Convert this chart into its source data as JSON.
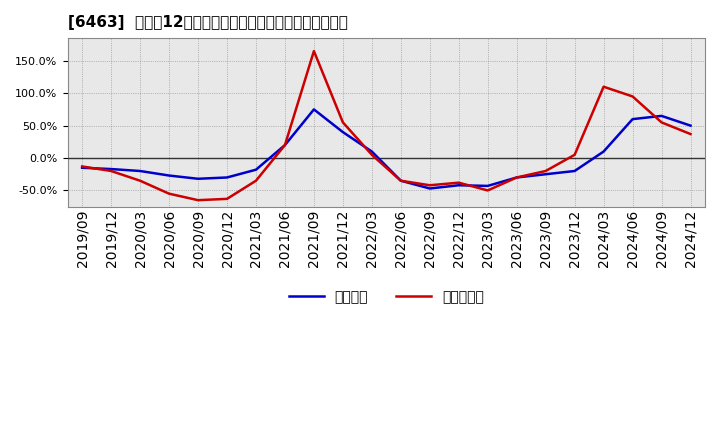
{
  "title": "[6463]  利益の12か月移動合計の対前年同期増減率の推移",
  "x_labels": [
    "2019/09",
    "2019/12",
    "2020/03",
    "2020/06",
    "2020/09",
    "2020/12",
    "2021/03",
    "2021/06",
    "2021/09",
    "2021/12",
    "2022/03",
    "2022/06",
    "2022/09",
    "2022/12",
    "2023/03",
    "2023/06",
    "2023/09",
    "2023/12",
    "2024/03",
    "2024/06",
    "2024/09",
    "2024/12"
  ],
  "operating_profit": [
    -15,
    -17,
    -20,
    -27,
    -32,
    -30,
    -18,
    20,
    75,
    40,
    10,
    -35,
    -47,
    -42,
    -43,
    -30,
    -25,
    -20,
    10,
    60,
    65,
    50
  ],
  "net_profit": [
    -13,
    -20,
    -35,
    -55,
    -65,
    -63,
    -35,
    20,
    165,
    55,
    5,
    -35,
    -42,
    -38,
    -50,
    -30,
    -20,
    5,
    110,
    95,
    55,
    37
  ],
  "operating_color": "#0000cc",
  "net_color": "#cc0000",
  "ylim": [
    -75,
    185
  ],
  "yticks": [
    -50,
    0,
    50,
    100,
    150
  ],
  "bg_color": "#ffffff",
  "plot_bg_color": "#e8e8e8",
  "grid_color": "#888888",
  "legend_labels": [
    "経常利益",
    "当期純利益"
  ],
  "title_fontsize": 11,
  "tick_fontsize": 8,
  "legend_fontsize": 10
}
